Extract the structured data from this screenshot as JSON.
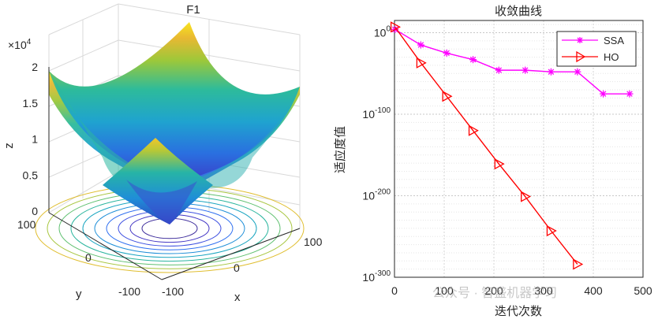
{
  "chart_data": [
    {
      "type": "surface",
      "title": "F1",
      "xlabel": "x",
      "ylabel": "y",
      "zlabel": "z",
      "z_exponent_label": "×10",
      "z_exponent_value": "4",
      "function": "z = x^2 + y^2",
      "xlim": [
        -100,
        100
      ],
      "ylim": [
        -100,
        100
      ],
      "zlim": [
        0,
        20000
      ],
      "x_ticks": [
        "-100",
        "0",
        "100"
      ],
      "y_ticks": [
        "-100",
        "0",
        "100"
      ],
      "z_ticks": [
        "0",
        "0.5",
        "1",
        "1.5",
        "2"
      ],
      "contour_levels": 10,
      "colormap": "parula"
    },
    {
      "type": "line",
      "title": "收敛曲线",
      "xlabel": "迭代次数",
      "ylabel": "适应度值",
      "x_scale": "linear",
      "y_scale": "log",
      "xlim": [
        0,
        500
      ],
      "ylim_exponent": [
        -300,
        15
      ],
      "x_ticks": [
        "0",
        "100",
        "200",
        "300",
        "400",
        "500"
      ],
      "y_tick_base": "10",
      "y_tick_exponents": [
        "0",
        "-100",
        "-200",
        "-300"
      ],
      "grid": true,
      "legend_position": "top-right",
      "series": [
        {
          "name": "SSA",
          "color": "#ff00ff",
          "marker": "asterisk",
          "x": [
            1,
            53,
            105,
            158,
            210,
            263,
            315,
            368,
            420,
            473
          ],
          "log10_y": [
            4,
            -15,
            -25,
            -33,
            -46,
            -46,
            -48,
            -48,
            -75,
            -75
          ]
        },
        {
          "name": "HO",
          "color": "#ff0000",
          "marker": "triangle-right",
          "x": [
            1,
            53,
            105,
            158,
            210,
            263,
            315,
            368
          ],
          "log10_y": [
            7,
            -37,
            -78,
            -120,
            -161,
            -201,
            -243,
            -284
          ]
        }
      ]
    }
  ],
  "watermark": "公众号 · 智盛机器学习"
}
